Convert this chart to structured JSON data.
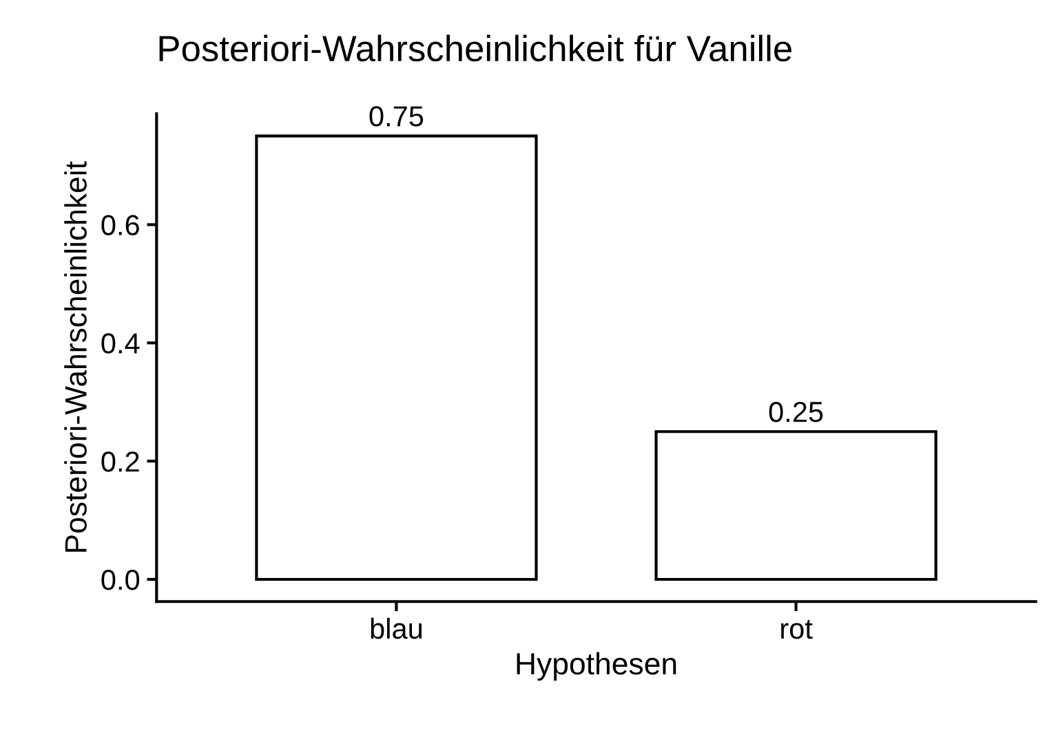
{
  "chart_data": {
    "type": "bar",
    "title": "Posteriori-Wahrscheinlichkeit für Vanille",
    "xlabel": "Hypothesen",
    "ylabel": "Posteriori-Wahrscheinlichkeit",
    "categories": [
      "blau",
      "rot"
    ],
    "values": [
      0.75,
      0.25
    ],
    "color": "#ffffff",
    "ylim": [
      -0.0375,
      0.7875
    ],
    "yticks": [
      {
        "value": 0,
        "label": "0.0"
      },
      {
        "value": 0.2,
        "label": "0.2"
      },
      {
        "value": 0.4,
        "label": "0.4"
      },
      {
        "value": 0.6,
        "label": "0.6"
      }
    ],
    "data_labels": true,
    "grid": false,
    "legend": false
  }
}
